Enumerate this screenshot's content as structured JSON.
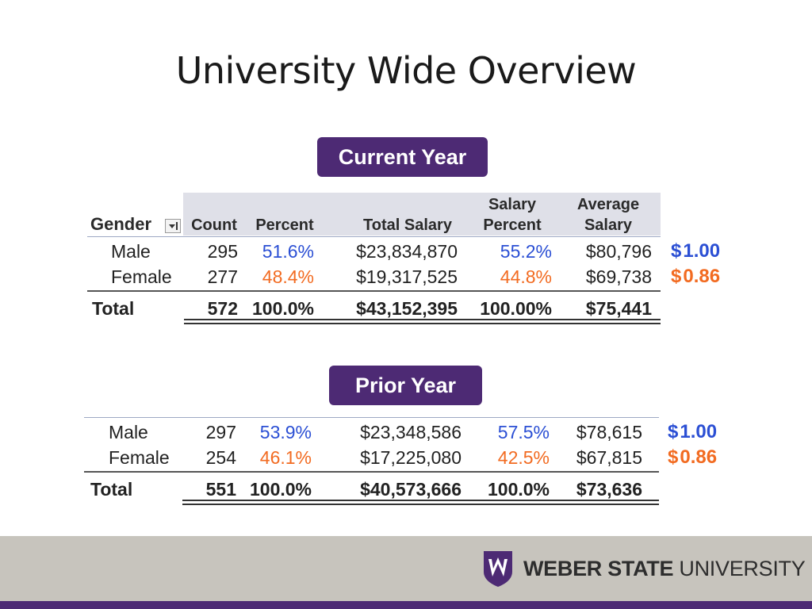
{
  "title": "University Wide Overview",
  "current": {
    "label": "Current Year",
    "headers": {
      "gender": "Gender",
      "count": "Count",
      "percent": "Percent",
      "total_salary": "Total Salary",
      "salary_percent_line1": "Salary",
      "salary_percent_line2": "Percent",
      "average_line1": "Average",
      "average_line2": "Salary"
    },
    "rows": [
      {
        "gender": "Male",
        "count": "295",
        "percent": "51.6%",
        "total_salary": "$23,834,870",
        "salary_percent": "55.2%",
        "average_salary": "$80,796",
        "ratio": "1.00"
      },
      {
        "gender": "Female",
        "count": "277",
        "percent": "48.4%",
        "total_salary": "$19,317,525",
        "salary_percent": "44.8%",
        "average_salary": "$69,738",
        "ratio": "0.86"
      }
    ],
    "total": {
      "label": "Total",
      "count": "572",
      "percent": "100.0%",
      "total_salary": "$43,152,395",
      "salary_percent": "100.00%",
      "average_salary": "$75,441"
    }
  },
  "prior": {
    "label": "Prior Year",
    "rows": [
      {
        "gender": "Male",
        "count": "297",
        "percent": "53.9%",
        "total_salary": "$23,348,586",
        "salary_percent": "57.5%",
        "average_salary": "$78,615",
        "ratio": "1.00"
      },
      {
        "gender": "Female",
        "count": "254",
        "percent": "46.1%",
        "total_salary": "$17,225,080",
        "salary_percent": "42.5%",
        "average_salary": "$67,815",
        "ratio": "0.86"
      }
    ],
    "total": {
      "label": "Total",
      "count": "551",
      "percent": "100.0%",
      "total_salary": "$40,573,666",
      "salary_percent": "100.0%",
      "average_salary": "$73,636"
    }
  },
  "currency_symbol": "$",
  "footer": {
    "brand_bold": "WEBER STATE",
    "brand_light": "UNIVERSITY"
  },
  "colors": {
    "purple": "#4d2a74",
    "blue": "#2b4fd4",
    "orange": "#f26b21",
    "footer": "#c7c4bd"
  }
}
